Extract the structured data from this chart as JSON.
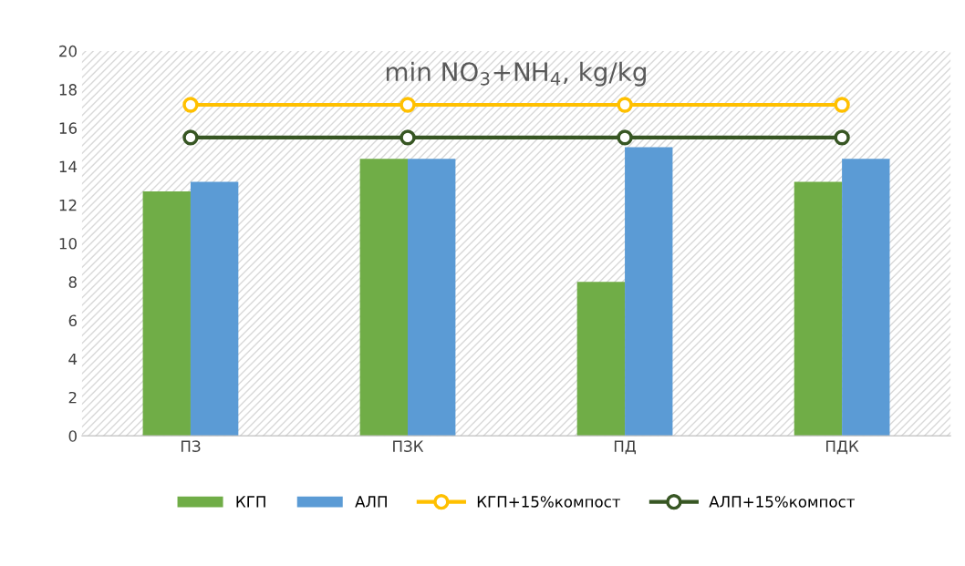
{
  "chart_data": {
    "type": "bar",
    "title": "min NO$_{3}$+NH$_{4}$, kg/kg",
    "categories": [
      "ПЗ",
      "ПЗК",
      "ПД",
      "ПДК"
    ],
    "series": [
      {
        "name": "КГП",
        "color": "#70ad47",
        "values": [
          12.7,
          14.4,
          8.0,
          13.2
        ]
      },
      {
        "name": "АЛП",
        "color": "#5b9bd5",
        "values": [
          13.2,
          14.4,
          15.0,
          14.4
        ]
      },
      {
        "name": "КГП+15%компост",
        "type": "line",
        "color": "#ffc000",
        "marker": "circle",
        "values": [
          17.2,
          17.2,
          17.2,
          17.2
        ]
      },
      {
        "name": "АЛП+15%компост",
        "type": "line",
        "color": "#375623",
        "marker": "circle",
        "values": [
          15.5,
          15.5,
          15.5,
          15.5
        ]
      }
    ],
    "ylim": [
      0,
      20
    ],
    "yticks": [
      0,
      2,
      4,
      6,
      8,
      10,
      12,
      14,
      16,
      18,
      20
    ],
    "grid": false,
    "legend": "bottom"
  }
}
